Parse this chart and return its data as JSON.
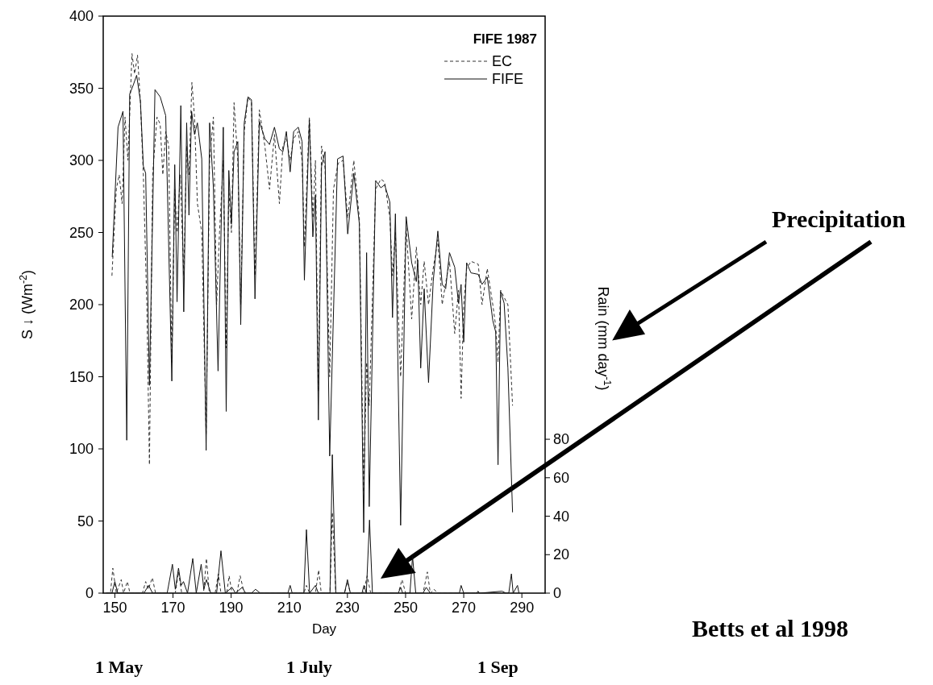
{
  "chart_data": {
    "type": "line",
    "xlabel": "Day",
    "ylabel": "S ↓  (Wm$^{-2}$)",
    "y2label": "Rain (mm day$^{-1}$)",
    "legend_title": "FIFE 1987",
    "legend": "top right",
    "annotations": [
      "Precipitation",
      "Betts et al 1998",
      "1 May",
      "1 July",
      "1 Sep"
    ],
    "xlim": [
      146,
      298
    ],
    "xticks": [
      150,
      170,
      190,
      210,
      230,
      250,
      270,
      290
    ],
    "ylim": [
      0,
      400
    ],
    "yticks": [
      0,
      50,
      100,
      150,
      200,
      250,
      300,
      350,
      400
    ],
    "y2lim": [
      0,
      300
    ],
    "y2ticks": [
      0,
      20,
      40,
      60,
      80
    ],
    "series": [
      {
        "name": "EC",
        "color": "#333333",
        "line_style": "dashed",
        "x": [
          149,
          150.5,
          151.5,
          152.5,
          153.5,
          154.5,
          155.9,
          156.8,
          157.8,
          158.8,
          159.8,
          161,
          161.9,
          163,
          164.5,
          165.6,
          166.5,
          167.5,
          168.5,
          169.6,
          170.6,
          171.4,
          172.5,
          173.7,
          174.7,
          175.5,
          176.5,
          177.4,
          178.4,
          179.9,
          181.4,
          182.6,
          183.9,
          185,
          186,
          187.3,
          188.3,
          189.2,
          190.1,
          191,
          192.3,
          193.3,
          194.5,
          195.8,
          197,
          198.2,
          199.7,
          201.6,
          203.2,
          204.9,
          206.6,
          207.8,
          209,
          210.3,
          211.5,
          213.1,
          214.4,
          215.2,
          216.9,
          218.1,
          219,
          220,
          221.1,
          222.3,
          223.9,
          225.2,
          226.8,
          228.5,
          230.1,
          232.2,
          234.1,
          235.6,
          236.6,
          237.5,
          239.7,
          241.5,
          242.8,
          244.6,
          245.5,
          246.5,
          248.3,
          250.2,
          252.1,
          253.7,
          255.2,
          256.4,
          257.9,
          259.5,
          261.1,
          262.6,
          263.8,
          265.1,
          266.9,
          268.2,
          269.1,
          270,
          271,
          272.5,
          275,
          276.3,
          278.1,
          280,
          281,
          281.8,
          282.7,
          283.9,
          285.2,
          286.8
        ],
        "values": [
          220,
          280,
          290,
          270,
          330,
          300,
          374,
          360,
          373,
          340,
          290,
          200,
          89,
          290,
          330,
          325,
          290,
          320,
          310,
          160,
          280,
          250,
          290,
          220,
          310,
          290,
          354,
          330,
          270,
          250,
          110,
          300,
          330,
          200,
          250,
          300,
          170,
          280,
          250,
          340,
          300,
          200,
          320,
          344,
          340,
          220,
          335,
          310,
          280,
          318,
          270,
          310,
          315,
          300,
          315,
          320,
          300,
          240,
          330,
          260,
          300,
          140,
          310,
          295,
          150,
          280,
          298,
          300,
          260,
          300,
          260,
          70,
          160,
          130,
          280,
          287,
          285,
          260,
          220,
          250,
          150,
          255,
          190,
          240,
          200,
          230,
          200,
          225,
          245,
          200,
          215,
          230,
          180,
          210,
          135,
          200,
          225,
          230,
          228,
          200,
          225,
          200,
          185,
          160,
          210,
          205,
          200,
          130
        ]
      },
      {
        "name": "FIFE",
        "color": "#111111",
        "line_style": "solid",
        "x": [
          149.1,
          151.1,
          152.8,
          154.1,
          155.1,
          156.3,
          157.5,
          158.8,
          159.8,
          160.6,
          161.9,
          163.8,
          165.6,
          167.5,
          169.6,
          170.6,
          171.4,
          172.7,
          173.7,
          174.7,
          175.5,
          176.4,
          177.4,
          178.4,
          179.9,
          181.4,
          182.6,
          183.9,
          185.5,
          187.3,
          188.3,
          189.2,
          190.1,
          191,
          192.3,
          193.3,
          194.5,
          195.8,
          197,
          198.2,
          199.7,
          201.6,
          203.2,
          204.9,
          206.6,
          207.8,
          209,
          210.3,
          211.5,
          213.1,
          214.4,
          215.2,
          216.9,
          218.1,
          219,
          220,
          221.1,
          222.3,
          223.9,
          226.6,
          228.5,
          230.1,
          232.2,
          234.1,
          235.6,
          236.6,
          237.5,
          239.7,
          241.5,
          242.8,
          244.6,
          245.5,
          246.5,
          248.3,
          250.2,
          252.1,
          253.7,
          254.2,
          255.2,
          256.4,
          257.9,
          259.5,
          261.1,
          262.6,
          263.8,
          265.1,
          266.9,
          268.2,
          269.1,
          270,
          271,
          272.5,
          275,
          276.3,
          278.1,
          280,
          281,
          281.8,
          282.7,
          283.9,
          285.2,
          286.8
        ],
        "values": [
          233,
          323,
          334,
          106,
          346,
          352,
          359,
          341,
          296,
          291,
          144,
          349,
          344,
          331,
          147,
          297,
          202,
          338,
          195,
          326,
          262,
          334,
          318,
          326,
          301,
          99,
          326,
          281,
          154,
          323,
          126,
          293,
          256,
          306,
          313,
          186,
          326,
          344,
          342,
          204,
          327,
          315,
          311,
          323,
          308,
          306,
          320,
          292,
          320,
          323,
          313,
          217,
          328,
          247,
          276,
          120,
          296,
          306,
          95,
          301,
          303,
          249,
          291,
          256,
          42,
          236,
          60,
          286,
          281,
          283,
          271,
          191,
          263,
          47,
          261,
          229,
          216,
          231,
          156,
          211,
          146,
          216,
          251,
          214,
          211,
          236,
          226,
          201,
          214,
          174,
          229,
          222,
          221,
          214,
          219,
          189,
          181,
          89,
          209,
          201,
          156,
          56
        ]
      },
      {
        "color": "#333333",
        "line_style": "dashed",
        "axis": "y2",
        "x": [
          147,
          148.5,
          149.3,
          150.5,
          152.2,
          153,
          154.3,
          155.2,
          159.5,
          160.6,
          161.5,
          162.9,
          164,
          170.8,
          171.9,
          173,
          180.5,
          181.5,
          182.5,
          184.5,
          185.6,
          186.5,
          188.5,
          189.3,
          190.3,
          192,
          193.1,
          194.5,
          215,
          215.9,
          217,
          219,
          220.1,
          221,
          224,
          224.8,
          226,
          229,
          230,
          231,
          235.5,
          236.8,
          238,
          247.5,
          248.8,
          250,
          256,
          257.5,
          258.5,
          259.8,
          261,
          289
        ],
        "values": [
          0,
          0,
          13,
          0,
          7,
          0,
          6,
          0,
          0,
          6,
          2,
          8,
          0,
          0,
          11,
          0,
          0,
          18,
          0,
          0,
          10,
          0,
          0,
          9,
          0,
          0,
          9,
          0,
          0,
          4,
          0,
          0,
          12,
          0,
          0,
          42,
          0,
          0,
          6,
          0,
          0,
          9,
          0,
          0,
          7,
          0,
          0,
          11,
          0,
          2,
          0,
          0
        ]
      },
      {
        "color": "#111111",
        "line_style": "solid",
        "axis": "y2",
        "x": [
          147,
          149,
          150,
          151,
          160,
          161.6,
          163,
          168,
          169.8,
          170.8,
          171.9,
          172.8,
          173.6,
          175,
          176.8,
          178,
          179.7,
          180.6,
          181.5,
          183,
          185,
          186.5,
          188,
          190.3,
          191.5,
          193.8,
          195,
          197,
          198.4,
          200,
          209.5,
          210.3,
          211,
          215,
          215.9,
          217,
          219,
          220,
          224,
          224.8,
          226,
          229,
          230,
          231,
          235,
          235.7,
          236.5,
          237.6,
          238.6,
          247.5,
          248.3,
          249,
          251.5,
          252.4,
          253.5,
          256,
          257.1,
          258.5,
          268.5,
          269.1,
          270,
          274.5,
          274.9,
          275.5,
          283.2,
          284.5,
          285.5,
          286.4,
          287,
          288.5,
          289
        ],
        "values": [
          0,
          0,
          6,
          0,
          0,
          4,
          0,
          0,
          15,
          2,
          13,
          4,
          6,
          0,
          18,
          0,
          15,
          2,
          7,
          0,
          0,
          22,
          0,
          3,
          0,
          3,
          0,
          0,
          2,
          0,
          0,
          4,
          0,
          0,
          33,
          0,
          4,
          0,
          0,
          72,
          0,
          0,
          7,
          0,
          0,
          4,
          0,
          38,
          0,
          0,
          3,
          0,
          0,
          19,
          0,
          0,
          3,
          0,
          0,
          4,
          0,
          0,
          1,
          0,
          1,
          0,
          0,
          10,
          0,
          4,
          0
        ]
      }
    ]
  }
}
